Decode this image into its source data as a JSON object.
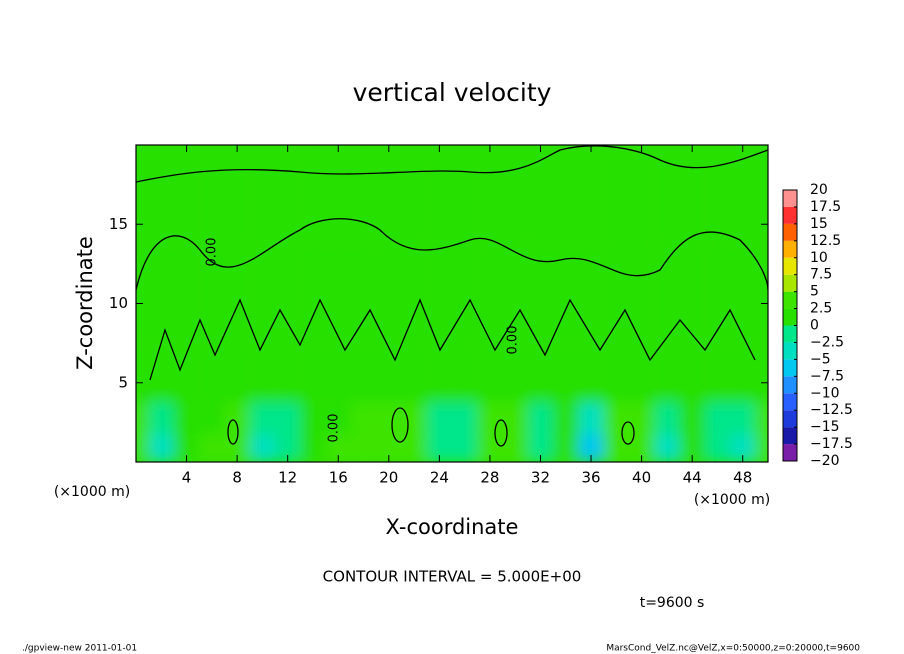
{
  "chart_data": {
    "type": "contour",
    "title": "vertical velocity",
    "x_label": "X-coordinate",
    "y_label": "Z-coordinate",
    "x_unit": "(×1000 m)",
    "y_unit": "(×1000 m)",
    "xlim": [
      0,
      50
    ],
    "ylim": [
      0,
      20
    ],
    "xticks": [
      4,
      8,
      12,
      16,
      20,
      24,
      28,
      32,
      36,
      40,
      44,
      48
    ],
    "yticks": [
      5,
      10,
      15
    ],
    "contour_label": "0.00",
    "annotation": "CONTOUR INTERVAL = 5.000E+00",
    "time_label": "t=9600 s",
    "footer_left": "./gpview-new   2011-01-01",
    "footer_right": "MarsCond_VelZ.nc@VelZ,x=0:50000,z=0:20000,t=9600",
    "colorbar": {
      "levels": [
        {
          "value": -20,
          "label": "−20"
        },
        {
          "value": -17.5,
          "label": "−17.5"
        },
        {
          "value": -15,
          "label": "−15"
        },
        {
          "value": -12.5,
          "label": "−12.5"
        },
        {
          "value": -10,
          "label": "−10"
        },
        {
          "value": -7.5,
          "label": "−7.5"
        },
        {
          "value": -5,
          "label": "−5"
        },
        {
          "value": -2.5,
          "label": "−2.5"
        },
        0,
        2.5,
        5,
        7.5,
        10,
        12.5,
        15,
        17.5,
        20
      ],
      "colors": [
        "#7a1fa8",
        "#1a1aa8",
        "#1e3cdc",
        "#2860ff",
        "#1e90ff",
        "#00c8f0",
        "#00e0c0",
        "#00e68a",
        "#28e000",
        "#3ce400",
        "#a8e600",
        "#e6e600",
        "#ffb000",
        "#ff6000",
        "#ff3030",
        "#ff9090"
      ]
    },
    "field": {
      "x": [
        0,
        2,
        4,
        6,
        8,
        10,
        12,
        14,
        16,
        18,
        20,
        22,
        24,
        26,
        28,
        30,
        32,
        34,
        36,
        38,
        40,
        42,
        44,
        46,
        48,
        50
      ],
      "z": [
        1,
        2.5,
        5,
        10,
        17.5
      ],
      "values": [
        [
          5,
          -3,
          1,
          3,
          5,
          -3,
          -1,
          2,
          3,
          3,
          4,
          5,
          -1,
          -2,
          3,
          5,
          -1,
          1,
          -5,
          3,
          5,
          -3,
          1,
          -1,
          -3,
          4
        ],
        [
          3,
          -2,
          0.5,
          2,
          5,
          -2,
          0,
          1,
          2,
          3,
          4,
          5,
          -1,
          -1,
          3,
          5,
          0,
          1,
          -3,
          3,
          5,
          -2,
          1,
          -1,
          -2,
          3
        ],
        [
          1,
          0.5,
          1,
          1,
          1,
          0.5,
          1,
          1,
          1,
          1,
          1,
          1,
          0.5,
          1,
          1,
          1,
          1,
          1,
          0.5,
          1,
          1,
          0.5,
          1,
          1,
          0.5,
          1
        ],
        [
          0.5,
          0.5,
          0.5,
          0.5,
          0.5,
          0.5,
          0.5,
          0.5,
          0.5,
          0.5,
          0.5,
          0.5,
          0.5,
          0.5,
          0.5,
          0.5,
          0.5,
          0.5,
          0.5,
          0.5,
          0.5,
          0.5,
          0.5,
          0.5,
          0.5,
          0.5
        ],
        [
          1,
          1,
          1,
          1,
          1,
          1,
          1,
          1,
          1,
          1,
          1,
          1,
          1,
          1,
          1,
          1,
          1,
          1,
          1,
          1,
          1,
          1,
          1,
          1,
          1,
          1
        ]
      ]
    }
  }
}
